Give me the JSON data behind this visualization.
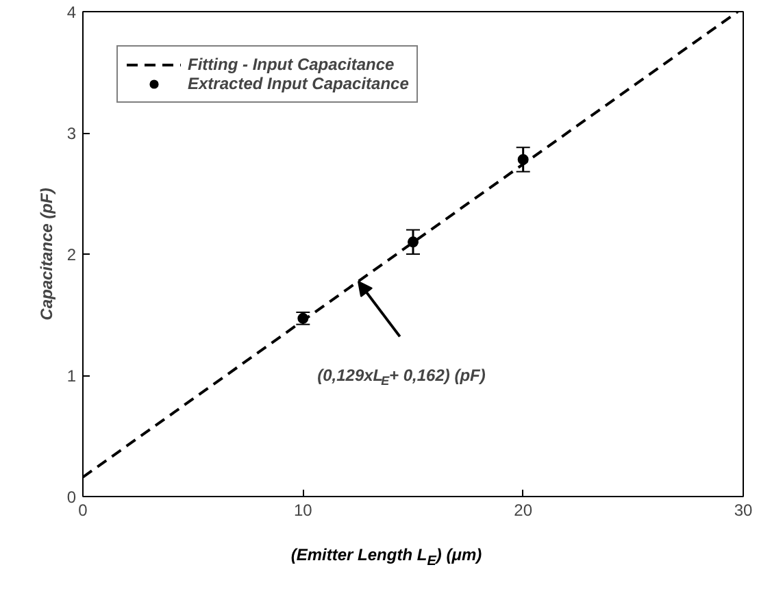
{
  "chart_data": {
    "type": "scatter",
    "xlabel": "(Emitter Length L$_{E}$) (μm)",
    "ylabel": "Capacitance (pF)",
    "xlim": [
      0,
      30
    ],
    "ylim": [
      0,
      4
    ],
    "xticks": [
      0,
      10,
      20,
      30
    ],
    "yticks": [
      0,
      1,
      2,
      3,
      4
    ],
    "grid": false,
    "legend": "top left",
    "series": [
      {
        "name": "Fitting - Input Capacitance",
        "type": "line",
        "line_style": "dashed",
        "marker": "none",
        "color": "#000000",
        "x": [
          0,
          29.75
        ],
        "values": [
          0.16,
          4.0
        ]
      },
      {
        "name": "Extracted Input Capacitance",
        "marker": "circle",
        "color": "#000000",
        "x": [
          10,
          15,
          20
        ],
        "values": [
          1.47,
          2.1,
          2.78
        ],
        "errors": [
          0.05,
          0.1,
          0.1
        ]
      }
    ],
    "annotations": [
      "(0,129xL$_{E}$+ 0,162) (pF)"
    ]
  }
}
